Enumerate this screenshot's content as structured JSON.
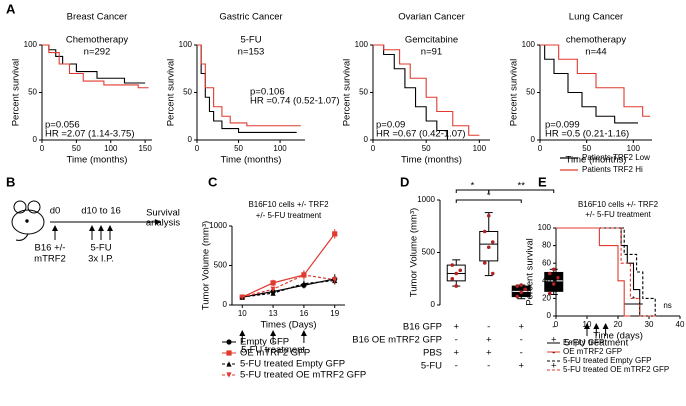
{
  "panel_labels": [
    "A",
    "B",
    "C",
    "D",
    "E"
  ],
  "legend_a": [
    {
      "name": "Patients TRF2 Low",
      "color": "#000000"
    },
    {
      "name": "Patients TRF2 Hi",
      "color": "#e03a2f"
    }
  ],
  "diagram_b": {
    "start": "d0",
    "treatment_days": "d10 to 16",
    "cells_lines": [
      "B16 +/-",
      "mTRF2"
    ],
    "drug_lines": [
      "5-FU",
      "3x I.P."
    ],
    "endpoint_lines": [
      "Survival",
      "analysis"
    ]
  },
  "chart_data": [
    {
      "type": "km",
      "title": "Breast Cancer",
      "subtitle": "Chemotherapy",
      "n": "n=292",
      "annotations": [
        "p=0.056",
        "HR =2.07 (1.14-3.75)"
      ],
      "xlabel": "Time (months)",
      "ylabel": "Percent survival",
      "xlim": [
        0,
        160
      ],
      "xticks": [
        0,
        50,
        100,
        150
      ],
      "ylim": [
        0,
        100
      ],
      "yticks": [
        0,
        50,
        100
      ],
      "series": [
        {
          "color": "#000000",
          "x": [
            0,
            10,
            10,
            20,
            20,
            30,
            30,
            50,
            50,
            80,
            80,
            120,
            120,
            150
          ],
          "values": [
            100,
            100,
            95,
            95,
            88,
            88,
            80,
            80,
            72,
            72,
            65,
            65,
            60,
            60
          ]
        },
        {
          "color": "#e03a2f",
          "x": [
            0,
            10,
            10,
            25,
            25,
            40,
            40,
            60,
            60,
            90,
            90,
            140,
            140,
            155
          ],
          "values": [
            100,
            100,
            92,
            92,
            80,
            80,
            70,
            70,
            62,
            62,
            58,
            58,
            55,
            55
          ]
        }
      ]
    },
    {
      "type": "km",
      "title": "Gastric Cancer",
      "subtitle": "5-FU",
      "n": "n=153",
      "annotations": [
        "p=0.106",
        "HR =0.74 (0.52-1.07)"
      ],
      "xlabel": "Time (months)",
      "ylabel": "Percent survival",
      "xlim": [
        0,
        130
      ],
      "xticks": [
        0,
        50,
        100
      ],
      "ylim": [
        0,
        100
      ],
      "yticks": [
        0,
        50,
        100
      ],
      "series": [
        {
          "color": "#000000",
          "x": [
            0,
            5,
            5,
            10,
            10,
            15,
            15,
            20,
            20,
            30,
            30,
            50,
            50,
            120
          ],
          "values": [
            100,
            100,
            70,
            70,
            45,
            45,
            30,
            30,
            20,
            20,
            12,
            12,
            8,
            8
          ]
        },
        {
          "color": "#e03a2f",
          "x": [
            0,
            5,
            5,
            10,
            10,
            20,
            20,
            30,
            30,
            40,
            40,
            60,
            60,
            125
          ],
          "values": [
            100,
            100,
            80,
            80,
            55,
            55,
            35,
            35,
            25,
            25,
            18,
            18,
            15,
            15
          ]
        }
      ]
    },
    {
      "type": "km",
      "title": "Ovarian Cancer",
      "subtitle": "Gemcitabine",
      "n": "n=91",
      "annotations": [
        "p=0.09",
        "HR =0.67 (0.42-1.07)"
      ],
      "xlabel": "Time (months)",
      "ylabel": "Percent survival",
      "xlim": [
        0,
        110
      ],
      "xticks": [
        0,
        50,
        100
      ],
      "ylim": [
        0,
        100
      ],
      "yticks": [
        0,
        50,
        100
      ],
      "series": [
        {
          "color": "#000000",
          "x": [
            0,
            10,
            10,
            20,
            20,
            30,
            30,
            40,
            40,
            50,
            50,
            60,
            60,
            70,
            70,
            80
          ],
          "values": [
            100,
            100,
            90,
            90,
            75,
            75,
            55,
            55,
            35,
            35,
            20,
            20,
            10,
            10,
            0,
            0
          ]
        },
        {
          "color": "#e03a2f",
          "x": [
            0,
            10,
            10,
            25,
            25,
            35,
            35,
            50,
            50,
            60,
            60,
            75,
            75,
            90,
            90,
            100
          ],
          "values": [
            100,
            100,
            95,
            95,
            80,
            80,
            65,
            65,
            45,
            45,
            30,
            30,
            15,
            15,
            5,
            5
          ]
        }
      ]
    },
    {
      "type": "km",
      "title": "Lung Cancer",
      "subtitle": "chemotherapy",
      "n": "n=44",
      "annotations": [
        "p=0.099",
        "HR =0.5 (0.21-1.16)"
      ],
      "xlabel": "Time (months)",
      "ylabel": "Percent survival",
      "xlim": [
        0,
        120
      ],
      "xticks": [
        0,
        50,
        100
      ],
      "ylim": [
        0,
        100
      ],
      "yticks": [
        0,
        50,
        100
      ],
      "series": [
        {
          "color": "#000000",
          "x": [
            0,
            5,
            5,
            15,
            15,
            30,
            30,
            45,
            45,
            60,
            60,
            80,
            80,
            105
          ],
          "values": [
            100,
            100,
            85,
            85,
            70,
            70,
            50,
            50,
            35,
            35,
            25,
            25,
            18,
            18
          ]
        },
        {
          "color": "#e03a2f",
          "x": [
            0,
            20,
            20,
            40,
            40,
            60,
            60,
            90,
            90,
            110,
            110,
            118
          ],
          "values": [
            100,
            100,
            85,
            85,
            70,
            70,
            55,
            55,
            35,
            35,
            25,
            25
          ]
        }
      ]
    },
    {
      "type": "line",
      "title": "B16F10 cells +/- TRF2",
      "subtitle": "+/- 5-FU treatment",
      "xlabel": "Times (Days)",
      "ylabel": "Tumor Volume (mm³)",
      "annotation": "5-FU treatment",
      "x": [
        10,
        13,
        16,
        19
      ],
      "xlim": [
        9,
        20
      ],
      "xticks": [
        10,
        13,
        16,
        19
      ],
      "ylim": [
        0,
        1000
      ],
      "yticks": [
        0,
        500,
        1000
      ],
      "series": [
        {
          "name": "Empty GFP",
          "color": "#000000",
          "dashed": false,
          "marker": "circle",
          "values": [
            100,
            170,
            250,
            330
          ],
          "errors": [
            10,
            30,
            40,
            60
          ]
        },
        {
          "name": "OE mTRF2 GFP",
          "color": "#e03a2f",
          "dashed": false,
          "marker": "square",
          "values": [
            100,
            280,
            380,
            900
          ],
          "errors": [
            10,
            40,
            60,
            60
          ]
        },
        {
          "name": "5-FU treated Empty GFP",
          "color": "#000000",
          "dashed": true,
          "marker": "triangle",
          "values": [
            100,
            150,
            270,
            310
          ],
          "errors": [
            10,
            30,
            40,
            50
          ]
        },
        {
          "name": "5-FU treated OE mTRF2 GFP",
          "color": "#e03a2f",
          "dashed": true,
          "marker": "triangle-down",
          "values": [
            100,
            200,
            380,
            320
          ],
          "errors": [
            10,
            30,
            50,
            50
          ]
        }
      ]
    },
    {
      "type": "box",
      "ylabel": "Tumor Volume (mm³)",
      "ylim": [
        0,
        1000
      ],
      "yticks": [
        0,
        500,
        1000
      ],
      "significance": [
        "*",
        "**",
        "*"
      ],
      "groups": [
        {
          "fill": "#ffffff",
          "min": 180,
          "q1": 230,
          "median": 300,
          "q3": 380,
          "max": 430,
          "points": [
            250,
            300,
            330,
            380,
            180
          ]
        },
        {
          "fill": "#ffffff",
          "min": 280,
          "q1": 420,
          "median": 580,
          "q3": 700,
          "max": 880,
          "points": [
            400,
            550,
            600,
            700,
            850,
            300
          ]
        },
        {
          "fill": "#000000",
          "min": 60,
          "q1": 80,
          "median": 130,
          "q3": 180,
          "max": 190,
          "points": [
            80,
            120,
            150,
            180,
            190
          ]
        },
        {
          "fill": "#000000",
          "min": 100,
          "q1": 130,
          "median": 230,
          "q3": 310,
          "max": 340,
          "points": [
            110,
            200,
            260,
            300,
            340
          ]
        }
      ],
      "table": [
        {
          "label": "B16 GFP",
          "cells": [
            "+",
            "-",
            "+",
            "-"
          ]
        },
        {
          "label": "B16 OE mTRF2 GFP",
          "cells": [
            "-",
            "+",
            "-",
            "+"
          ]
        },
        {
          "label": "PBS",
          "cells": [
            "+",
            "+",
            "-",
            "-"
          ]
        },
        {
          "label": "5-FU",
          "cells": [
            "-",
            "-",
            "+",
            "+"
          ]
        }
      ]
    },
    {
      "type": "km",
      "title": "B16F10 cells +/- TRF2",
      "subtitle": "+/- 5-FU treatment",
      "annotations": [
        "*",
        "ns"
      ],
      "annotation": "5-FU treatment",
      "xlabel": "Time (days)",
      "ylabel": "Percent survival",
      "xlim": [
        0,
        40
      ],
      "xticks": [
        0,
        10,
        20,
        30,
        40
      ],
      "ylim": [
        0,
        100
      ],
      "yticks": [
        0,
        20,
        40,
        60,
        80,
        100
      ],
      "series": [
        {
          "name": "Empty GFP",
          "color": "#000000",
          "dashed": false,
          "x": [
            0,
            21,
            21,
            23,
            23,
            25,
            25,
            27,
            27,
            30
          ],
          "values": [
            100,
            100,
            80,
            80,
            60,
            60,
            30,
            30,
            0,
            0
          ]
        },
        {
          "name": "OE mTRF2 GFP",
          "color": "#e03a2f",
          "dashed": false,
          "x": [
            0,
            14,
            14,
            20,
            20,
            22,
            22,
            24
          ],
          "values": [
            100,
            100,
            80,
            80,
            40,
            40,
            0,
            0
          ]
        },
        {
          "name": "5-FU treated Empty GFP",
          "color": "#000000",
          "dashed": true,
          "x": [
            0,
            22,
            22,
            26,
            26,
            28,
            28,
            32,
            32,
            35
          ],
          "values": [
            100,
            100,
            70,
            70,
            50,
            50,
            20,
            20,
            0,
            0
          ]
        },
        {
          "name": "5-FU treated OE mTRF2 GFP",
          "color": "#e03a2f",
          "dashed": true,
          "x": [
            0,
            21,
            21,
            24,
            24,
            27,
            27,
            33
          ],
          "values": [
            100,
            100,
            60,
            60,
            20,
            20,
            0,
            0
          ]
        }
      ]
    }
  ]
}
